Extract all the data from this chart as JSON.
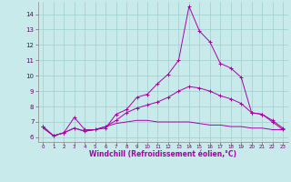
{
  "xlabel": "Windchill (Refroidissement éolien,°C)",
  "ylabel": "",
  "background_color": "#c8eaea",
  "grid_color": "#a0cccc",
  "line_color": "#aa00aa",
  "xlim": [
    -0.5,
    23.5
  ],
  "ylim": [
    5.7,
    14.8
  ],
  "yticks": [
    6,
    7,
    8,
    9,
    10,
    11,
    12,
    13,
    14
  ],
  "xticks": [
    0,
    1,
    2,
    3,
    4,
    5,
    6,
    7,
    8,
    9,
    10,
    11,
    12,
    13,
    14,
    15,
    16,
    17,
    18,
    19,
    20,
    21,
    22,
    23
  ],
  "x": [
    0,
    1,
    2,
    3,
    4,
    5,
    6,
    7,
    8,
    9,
    10,
    11,
    12,
    13,
    14,
    15,
    16,
    17,
    18,
    19,
    20,
    21,
    22,
    23
  ],
  "line1": [
    6.7,
    6.1,
    6.3,
    7.3,
    6.5,
    6.5,
    6.6,
    7.5,
    7.8,
    8.6,
    8.8,
    9.5,
    10.1,
    11.0,
    14.5,
    12.9,
    12.2,
    10.8,
    10.5,
    9.9,
    7.6,
    7.5,
    7.1,
    6.6
  ],
  "line2": [
    6.7,
    6.1,
    6.3,
    6.6,
    6.4,
    6.5,
    6.7,
    7.1,
    7.6,
    7.9,
    8.1,
    8.3,
    8.6,
    9.0,
    9.3,
    9.2,
    9.0,
    8.7,
    8.5,
    8.2,
    7.6,
    7.5,
    7.0,
    6.5
  ],
  "line3": [
    6.6,
    6.1,
    6.3,
    6.6,
    6.4,
    6.5,
    6.7,
    6.9,
    7.0,
    7.1,
    7.1,
    7.0,
    7.0,
    7.0,
    7.0,
    6.9,
    6.8,
    6.8,
    6.7,
    6.7,
    6.6,
    6.6,
    6.5,
    6.5
  ]
}
